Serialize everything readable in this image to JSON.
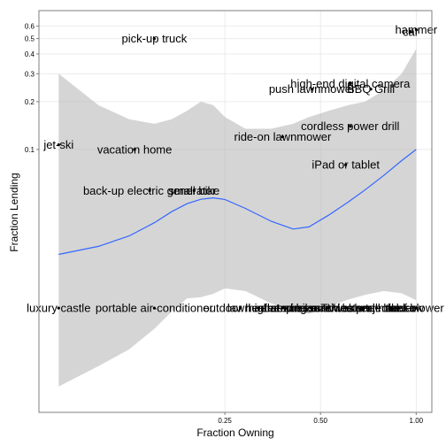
{
  "chart_data": {
    "type": "scatter",
    "x_scale": "log",
    "y_scale": "log",
    "xlabel": "Fraction Owning",
    "ylabel": "Fraction Lending",
    "xlim": [
      0.065,
      1.12
    ],
    "ylim": [
      0.0022,
      0.75
    ],
    "x_ticks": [
      {
        "value": 0.25,
        "label": "0.25"
      },
      {
        "value": 0.5,
        "label": "0.50"
      },
      {
        "value": 1.0,
        "label": "1.00"
      }
    ],
    "y_ticks": [
      {
        "value": 0.1,
        "label": "0.1"
      },
      {
        "value": 0.2,
        "label": "0.2"
      },
      {
        "value": 0.3,
        "label": "0.3"
      },
      {
        "value": 0.4,
        "label": "0.4"
      },
      {
        "value": 0.5,
        "label": "0.5"
      },
      {
        "value": 0.6,
        "label": "0.6"
      }
    ],
    "grid": true,
    "points": [
      {
        "label": "hammer",
        "x": 1.0,
        "y": 0.57
      },
      {
        "label": "car",
        "x": 0.96,
        "y": 0.55
      },
      {
        "label": "pick-up truck",
        "x": 0.15,
        "y": 0.5
      },
      {
        "label": "high-end digital camera",
        "x": 0.62,
        "y": 0.26
      },
      {
        "label": "push lawnmower",
        "x": 0.47,
        "y": 0.24
      },
      {
        "label": "BBQ Grill",
        "x": 0.72,
        "y": 0.24
      },
      {
        "label": "cordless power drill",
        "x": 0.62,
        "y": 0.14
      },
      {
        "label": "jet-ski",
        "x": 0.075,
        "y": 0.107
      },
      {
        "label": "vacation home",
        "x": 0.13,
        "y": 0.1
      },
      {
        "label": "ride-on lawnmower",
        "x": 0.38,
        "y": 0.12
      },
      {
        "label": "iPad or tablet",
        "x": 0.6,
        "y": 0.08
      },
      {
        "label": "back-up electric generator",
        "x": 0.145,
        "y": 0.055
      },
      {
        "label": "small bike",
        "x": 0.2,
        "y": 0.055
      },
      {
        "label": "luxury castle",
        "x": 0.075,
        "y": 0.01
      },
      {
        "label": "portable air-conditioner",
        "x": 0.15,
        "y": 0.01
      },
      {
        "label": "outdoor heater",
        "x": 0.28,
        "y": 0.01
      },
      {
        "label": "lawn aerator",
        "x": 0.32,
        "y": 0.01
      },
      {
        "label": "high-end bike",
        "x": 0.38,
        "y": 0.01
      },
      {
        "label": "flat-screen TV",
        "x": 0.43,
        "y": 0.01
      },
      {
        "label": "sewing machine",
        "x": 0.47,
        "y": 0.01
      },
      {
        "label": "pressure washer",
        "x": 0.53,
        "y": 0.01
      },
      {
        "label": "snowblower",
        "x": 0.6,
        "y": 0.01
      },
      {
        "label": "video projector",
        "x": 0.68,
        "y": 0.01
      },
      {
        "label": "stand mixer",
        "x": 0.75,
        "y": 0.01
      },
      {
        "label": "tall ladder",
        "x": 0.83,
        "y": 0.01
      },
      {
        "label": "tile saw",
        "x": 0.92,
        "y": 0.01
      },
      {
        "label": "leaf blower",
        "x": 1.0,
        "y": 0.01
      }
    ],
    "trend": {
      "x": [
        0.075,
        0.1,
        0.125,
        0.15,
        0.17,
        0.19,
        0.21,
        0.23,
        0.25,
        0.29,
        0.35,
        0.41,
        0.46,
        0.53,
        0.61,
        0.69,
        0.79,
        0.9,
        1.0
      ],
      "y": [
        0.0218,
        0.0245,
        0.0285,
        0.0345,
        0.0405,
        0.0455,
        0.0485,
        0.0495,
        0.0484,
        0.0425,
        0.0352,
        0.0315,
        0.0325,
        0.0385,
        0.0465,
        0.0555,
        0.0685,
        0.085,
        0.1
      ],
      "band_upper": [
        0.3,
        0.19,
        0.155,
        0.145,
        0.155,
        0.175,
        0.2,
        0.19,
        0.16,
        0.135,
        0.135,
        0.145,
        0.16,
        0.175,
        0.19,
        0.2,
        0.235,
        0.3,
        0.43
      ],
      "band_lower": [
        0.0032,
        0.0043,
        0.0055,
        0.0074,
        0.0095,
        0.0115,
        0.0117,
        0.0123,
        0.0133,
        0.0128,
        0.0107,
        0.0095,
        0.0092,
        0.0102,
        0.0113,
        0.0121,
        0.0128,
        0.0124,
        0.0112
      ]
    },
    "colors": {
      "trend_line": "#3366ff",
      "band_fill": "#b3b3b3",
      "point": "#000000",
      "grid": "#ebebeb",
      "panel_border": "#7f7f7f"
    }
  }
}
